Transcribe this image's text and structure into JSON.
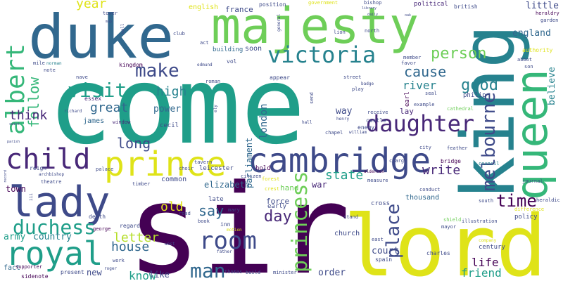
{
  "palette": {
    "purple": "#440154",
    "indigo": "#482878",
    "blue": "#3e4a89",
    "steel": "#31688e",
    "teal": "#26828e",
    "green": "#1f9e89",
    "mint": "#35b779",
    "lime": "#6ece58",
    "chartreuse": "#b5de2b",
    "yellow": "#dfe318"
  },
  "words": [
    {
      "text": "come",
      "color": "#1f9e89"
    },
    {
      "text": "sir",
      "color": "#440154"
    },
    {
      "text": "lord",
      "color": "#dfe318"
    },
    {
      "text": "king",
      "color": "#26828e"
    },
    {
      "text": "duke",
      "color": "#31688e"
    },
    {
      "text": "majesty",
      "color": "#6ece58"
    },
    {
      "text": "queen",
      "color": "#35b779"
    },
    {
      "text": "prince",
      "color": "#dfe318"
    },
    {
      "text": "cambridge",
      "color": "#3e4a89"
    },
    {
      "text": "lady",
      "color": "#3e4a89"
    },
    {
      "text": "royal",
      "color": "#1f9e89"
    },
    {
      "text": "child",
      "color": "#482878"
    },
    {
      "text": "victoria",
      "color": "#26828e"
    },
    {
      "text": "albert",
      "color": "#35b779"
    },
    {
      "text": "room",
      "color": "#3e4a89"
    },
    {
      "text": "princess",
      "color": "#6ece58"
    },
    {
      "text": "duchess",
      "color": "#1f9e89"
    },
    {
      "text": "daughter",
      "color": "#482878"
    },
    {
      "text": "melbourne",
      "color": "#3e4a89"
    },
    {
      "text": "visit",
      "color": "#1f9e89"
    },
    {
      "text": "make",
      "color": "#3e4a89"
    },
    {
      "text": "person",
      "color": "#6ece58"
    },
    {
      "text": "man",
      "color": "#31688e"
    },
    {
      "text": "place",
      "color": "#3e4a89"
    },
    {
      "text": "time",
      "color": "#440154"
    },
    {
      "text": "follow",
      "color": "#35b779"
    },
    {
      "text": "year",
      "color": "#dfe318"
    },
    {
      "text": "day",
      "color": "#482878"
    },
    {
      "text": "cause",
      "color": "#31688e"
    },
    {
      "text": "good",
      "color": "#26828e"
    },
    {
      "text": "think",
      "color": "#482878"
    },
    {
      "text": "great",
      "color": "#31688e"
    },
    {
      "text": "high",
      "color": "#26828e"
    },
    {
      "text": "long",
      "color": "#3e4a89"
    },
    {
      "text": "say",
      "color": "#31688e"
    },
    {
      "text": "letter",
      "color": "#b5de2b"
    },
    {
      "text": "house",
      "color": "#31688e"
    },
    {
      "text": "old",
      "color": "#dfe318"
    },
    {
      "text": "state",
      "color": "#1f9e89"
    },
    {
      "text": "write",
      "color": "#482878"
    },
    {
      "text": "life",
      "color": "#440154"
    },
    {
      "text": "friend",
      "color": "#1f9e89"
    },
    {
      "text": "know",
      "color": "#1f9e89"
    },
    {
      "text": "london",
      "color": "#31688e"
    },
    {
      "text": "river",
      "color": "#26828e"
    },
    {
      "text": "believe",
      "color": "#26828e"
    },
    {
      "text": "england",
      "color": "#31688e"
    },
    {
      "text": "little",
      "color": "#3e4a89"
    },
    {
      "text": "power",
      "color": "#31688e"
    },
    {
      "text": "order",
      "color": "#3e4a89"
    },
    {
      "text": "parliament",
      "color": "#31688e"
    },
    {
      "text": "court",
      "color": "#3e4a89"
    },
    {
      "text": "country",
      "color": "#26828e"
    },
    {
      "text": "army",
      "color": "#1f9e89"
    },
    {
      "text": "way",
      "color": "#3e4a89"
    },
    {
      "text": "elizabeth",
      "color": "#31688e"
    },
    {
      "text": "war",
      "color": "#482878"
    },
    {
      "text": "like",
      "color": "#3e4a89"
    },
    {
      "text": "new",
      "color": "#3e4a89"
    },
    {
      "text": "town",
      "color": "#440154"
    },
    {
      "text": "france",
      "color": "#3e4a89"
    },
    {
      "text": "james",
      "color": "#31688e"
    },
    {
      "text": "hand",
      "color": "#6ece58"
    },
    {
      "text": "lay",
      "color": "#482878"
    },
    {
      "text": "church",
      "color": "#3e4a89"
    },
    {
      "text": "force",
      "color": "#3e4a89"
    },
    {
      "text": "common",
      "color": "#3e4a89"
    },
    {
      "text": "century",
      "color": "#3e4a89"
    },
    {
      "text": "earl",
      "color": "#440154"
    },
    {
      "text": "english",
      "color": "#dfe318"
    },
    {
      "text": "thousand",
      "color": "#31688e"
    },
    {
      "text": "policy",
      "color": "#3e4a89"
    },
    {
      "text": "cecil",
      "color": "#3e4a89"
    },
    {
      "text": "leicester",
      "color": "#3e4a89"
    },
    {
      "text": "late",
      "color": "#3e4a89"
    },
    {
      "text": "early",
      "color": "#3e4a89"
    },
    {
      "text": "present",
      "color": "#3e4a89"
    },
    {
      "text": "fact",
      "color": "#31688e"
    },
    {
      "text": "soon",
      "color": "#3e4a89"
    },
    {
      "text": "building",
      "color": "#31688e"
    },
    {
      "text": "hold",
      "color": "#440154"
    },
    {
      "text": "kingdom",
      "color": "#440154"
    },
    {
      "text": "essex",
      "color": "#482878"
    },
    {
      "text": "window",
      "color": "#482878"
    },
    {
      "text": "political",
      "color": "#482878"
    },
    {
      "text": "british",
      "color": "#3e4a89"
    },
    {
      "text": "position",
      "color": "#3e4a89"
    },
    {
      "text": "heraldry",
      "color": "#440154"
    },
    {
      "text": "garden",
      "color": "#3e4a89"
    },
    {
      "text": "authority",
      "color": "#dfe318"
    },
    {
      "text": "abbot",
      "color": "#3e4a89"
    },
    {
      "text": "son",
      "color": "#3e4a89"
    },
    {
      "text": "philip",
      "color": "#3e4a89"
    },
    {
      "text": "seal",
      "color": "#3e4a89"
    },
    {
      "text": "example",
      "color": "#3e4a89"
    },
    {
      "text": "cathedral",
      "color": "#6ece58"
    },
    {
      "text": "bridge",
      "color": "#440154"
    },
    {
      "text": "council",
      "color": "#26828e"
    },
    {
      "text": "journal",
      "color": "#3e4a89"
    },
    {
      "text": "south",
      "color": "#3e4a89"
    },
    {
      "text": "heraldic",
      "color": "#3e4a89"
    },
    {
      "text": "difference",
      "color": "#dfe318"
    },
    {
      "text": "mayor",
      "color": "#3e4a89"
    },
    {
      "text": "illustration",
      "color": "#3e4a89"
    },
    {
      "text": "shield",
      "color": "#6ece58"
    },
    {
      "text": "company",
      "color": "#dfe318"
    },
    {
      "text": "charles",
      "color": "#3e4a89"
    },
    {
      "text": "spain",
      "color": "#3e4a89"
    },
    {
      "text": "east",
      "color": "#3e4a89"
    },
    {
      "text": "stand",
      "color": "#3e4a89"
    },
    {
      "text": "cross",
      "color": "#3e4a89"
    },
    {
      "text": "conduct",
      "color": "#3e4a89"
    },
    {
      "text": "measure",
      "color": "#3e4a89"
    },
    {
      "text": "aldermen",
      "color": "#440154"
    },
    {
      "text": "forest",
      "color": "#dfe318"
    },
    {
      "text": "citizen",
      "color": "#3e4a89"
    },
    {
      "text": "crest",
      "color": "#dfe318"
    },
    {
      "text": "mary",
      "color": "#3e4a89"
    },
    {
      "text": "inn",
      "color": "#3e4a89"
    },
    {
      "text": "book",
      "color": "#3e4a89"
    },
    {
      "text": "road",
      "color": "#3e4a89"
    },
    {
      "text": "motion",
      "color": "#dfe318"
    },
    {
      "text": "father",
      "color": "#3e4a89"
    },
    {
      "text": "thomas",
      "color": "#3e4a89"
    },
    {
      "text": "build",
      "color": "#3e4a89"
    },
    {
      "text": "minister",
      "color": "#3e4a89"
    },
    {
      "text": "sidenote",
      "color": "#440154"
    },
    {
      "text": "supporter",
      "color": "#440154"
    },
    {
      "text": "george",
      "color": "#440154"
    },
    {
      "text": "regard",
      "color": "#3e4a89"
    },
    {
      "text": "west",
      "color": "#3e4a89"
    },
    {
      "text": "work",
      "color": "#3e4a89"
    },
    {
      "text": "roger",
      "color": "#3e4a89"
    },
    {
      "text": "death",
      "color": "#3e4a89"
    },
    {
      "text": "palace",
      "color": "#3e4a89"
    },
    {
      "text": "choir",
      "color": "#3e4a89"
    },
    {
      "text": "tavern",
      "color": "#3e4a89"
    },
    {
      "text": "timber",
      "color": "#3e4a89"
    },
    {
      "text": "theatre",
      "color": "#3e4a89"
    },
    {
      "text": "archbishop",
      "color": "#3e4a89"
    },
    {
      "text": "reign",
      "color": "#3e4a89"
    },
    {
      "text": "nave",
      "color": "#3e4a89"
    },
    {
      "text": "richard",
      "color": "#3e4a89"
    },
    {
      "text": "note",
      "color": "#3e4a89"
    },
    {
      "text": "mile",
      "color": "#3e4a89"
    },
    {
      "text": "norman",
      "color": "#26828e"
    },
    {
      "text": "tower",
      "color": "#3e4a89"
    },
    {
      "text": "wall",
      "color": "#3e4a89"
    },
    {
      "text": "club",
      "color": "#3e4a89"
    },
    {
      "text": "act",
      "color": "#3e4a89"
    },
    {
      "text": "edmund",
      "color": "#3e4a89"
    },
    {
      "text": "vol",
      "color": "#3e4a89"
    },
    {
      "text": "appear",
      "color": "#3e4a89"
    },
    {
      "text": "roman",
      "color": "#3e4a89"
    },
    {
      "text": "ely",
      "color": "#3e4a89"
    },
    {
      "text": "send",
      "color": "#3e4a89"
    },
    {
      "text": "hall",
      "color": "#3e4a89"
    },
    {
      "text": "henry",
      "color": "#3e4a89"
    },
    {
      "text": "chapel",
      "color": "#3e4a89"
    },
    {
      "text": "street",
      "color": "#3e4a89"
    },
    {
      "text": "badge",
      "color": "#3e4a89"
    },
    {
      "text": "play",
      "color": "#3e4a89"
    },
    {
      "text": "castle",
      "color": "#3e4a89"
    },
    {
      "text": "enemy",
      "color": "#3e4a89"
    },
    {
      "text": "receive",
      "color": "#3e4a89"
    },
    {
      "text": "william",
      "color": "#3e4a89"
    },
    {
      "text": "charge",
      "color": "#3e4a89"
    },
    {
      "text": "city",
      "color": "#3e4a89"
    },
    {
      "text": "feather",
      "color": "#3e4a89"
    },
    {
      "text": "bishop",
      "color": "#3e4a89"
    },
    {
      "text": "lion",
      "color": "#3e4a89"
    },
    {
      "text": "north",
      "color": "#3e4a89"
    },
    {
      "text": "government",
      "color": "#dfe318"
    },
    {
      "text": "favor",
      "color": "#3e4a89"
    },
    {
      "text": "member",
      "color": "#3e4a89"
    },
    {
      "text": "general",
      "color": "#3e4a89"
    },
    {
      "text": "record",
      "color": "#3e4a89"
    },
    {
      "text": "parish",
      "color": "#3e4a89"
    },
    {
      "text": "library",
      "color": "#3e4a89"
    },
    {
      "text": "map",
      "color": "#3e4a89"
    },
    {
      "text": "daily",
      "color": "#3e4a89"
    },
    {
      "text": "oak",
      "color": "#3e4a89"
    },
    {
      "text": "iii",
      "color": "#3e4a89"
    },
    {
      "text": "saint",
      "color": "#3e4a89"
    }
  ]
}
